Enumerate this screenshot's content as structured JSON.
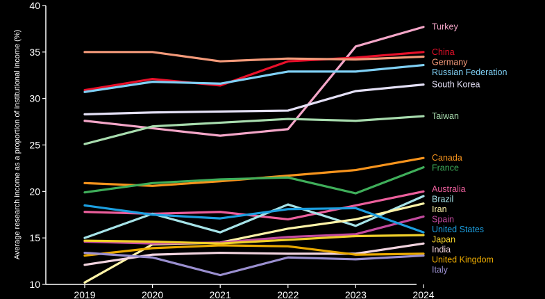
{
  "chart_data": {
    "type": "line",
    "title": "",
    "xlabel": "",
    "ylabel": "Average research income as a proportion of institutional income (%)",
    "x": [
      "2019",
      "2020",
      "2021",
      "2022",
      "2023",
      "2024"
    ],
    "ylim": [
      10,
      40
    ],
    "yticks": [
      "10",
      "15",
      "20",
      "25",
      "30",
      "35",
      "40"
    ],
    "grid": false,
    "legend": "right, labels at line ends",
    "series": [
      {
        "name": "Turkey",
        "color": "#f4a6c8",
        "values": [
          27.6,
          26.8,
          26.0,
          26.7,
          35.6,
          37.7
        ]
      },
      {
        "name": "China",
        "color": "#e8102a",
        "values": [
          30.9,
          32.1,
          31.4,
          34.0,
          34.4,
          35.0
        ]
      },
      {
        "name": "Germany",
        "color": "#f49a7a",
        "values": [
          35.0,
          35.0,
          34.0,
          34.3,
          34.2,
          34.5
        ]
      },
      {
        "name": "Russian Federation",
        "color": "#7fd0f5",
        "values": [
          30.7,
          31.8,
          31.6,
          32.9,
          32.9,
          33.6
        ]
      },
      {
        "name": "South Korea",
        "color": "#e4e0f6",
        "values": [
          28.3,
          28.5,
          28.6,
          28.7,
          30.8,
          31.5
        ]
      },
      {
        "name": "Taiwan",
        "color": "#a8dcae",
        "values": [
          25.1,
          27.0,
          27.4,
          27.8,
          27.6,
          28.1
        ]
      },
      {
        "name": "Canada",
        "color": "#f7941d",
        "values": [
          20.9,
          20.6,
          21.1,
          21.7,
          22.3,
          23.6
        ]
      },
      {
        "name": "France",
        "color": "#3fae5a",
        "values": [
          19.9,
          20.9,
          21.3,
          21.5,
          19.8,
          22.6
        ]
      },
      {
        "name": "Australia",
        "color": "#ec5f9c",
        "values": [
          17.8,
          17.6,
          17.8,
          17.0,
          18.5,
          20.0
        ]
      },
      {
        "name": "Brazil",
        "color": "#a6e3e8",
        "values": [
          15.0,
          17.6,
          15.6,
          18.6,
          16.3,
          19.5
        ]
      },
      {
        "name": "Iran",
        "color": "#fff4a8",
        "values": [
          10.2,
          14.3,
          14.5,
          16.0,
          17.0,
          18.7
        ]
      },
      {
        "name": "Spain",
        "color": "#c24a9e",
        "values": [
          14.6,
          14.4,
          14.5,
          15.1,
          15.4,
          17.3
        ]
      },
      {
        "name": "United States",
        "color": "#1c9fe0",
        "values": [
          18.5,
          17.5,
          17.1,
          18.1,
          18.2,
          15.6
        ]
      },
      {
        "name": "Japan",
        "color": "#f0d02a",
        "values": [
          14.7,
          14.6,
          14.4,
          14.8,
          15.2,
          15.3
        ]
      },
      {
        "name": "India",
        "color": "#f2d4df",
        "values": [
          12.1,
          13.2,
          13.4,
          13.3,
          13.3,
          14.4
        ]
      },
      {
        "name": "United Kingdom",
        "color": "#e8a800",
        "values": [
          13.1,
          13.9,
          14.2,
          14.1,
          13.2,
          13.3
        ]
      },
      {
        "name": "Italy",
        "color": "#9a8fcf",
        "values": [
          13.4,
          12.9,
          11.0,
          12.9,
          12.7,
          13.1
        ]
      }
    ]
  }
}
